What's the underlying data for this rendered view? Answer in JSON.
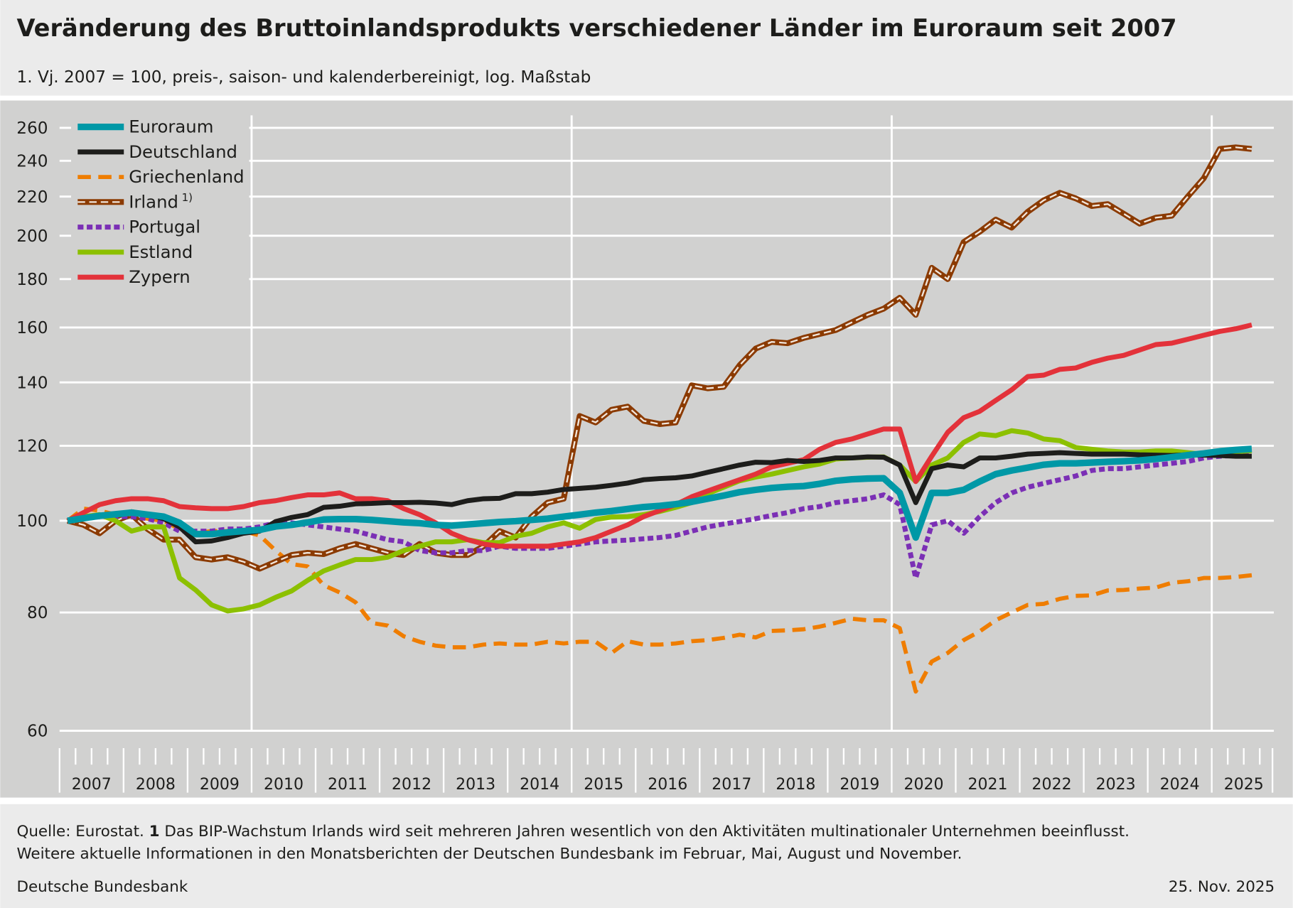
{
  "header": {
    "title": "Veränderung des Bruttoinlandsprodukts verschiedener Länder im Euroraum seit 2007",
    "subtitle": "1. Vj. 2007 = 100, preis-, saison- und kalenderbereinigt, log. Maßstab"
  },
  "footer": {
    "source_prefix": "Quelle: Eurostat.",
    "note_number": "1",
    "note_text": "Das BIP-Wachstum Irlands wird seit mehreren Jahren wesentlich von den Aktivitäten multinationaler Unternehmen beeinflusst.",
    "info": "Weitere aktuelle Informationen in den Monatsberichten der Deutschen Bundesbank im Februar, Mai, August und November.",
    "publisher": "Deutsche Bundesbank",
    "date": "25. Nov. 2025"
  },
  "chart_data": {
    "type": "line",
    "title": "Veränderung des Bruttoinlandsprodukts verschiedener Länder im Euroraum seit 2007",
    "y_scale": "log",
    "ylim": [
      60,
      265
    ],
    "y_ticks": [
      "60",
      "80",
      "100",
      "120",
      "140",
      "160",
      "180",
      "200",
      "220",
      "240",
      "260"
    ],
    "x_start": "2007-Q1",
    "x_frequency": "quarterly",
    "x_tick_labels": [
      "2007",
      "2008",
      "2009",
      "2010",
      "2011",
      "2012",
      "2013",
      "2014",
      "2015",
      "2016",
      "2017",
      "2018",
      "2019",
      "2020",
      "2021",
      "2022",
      "2023",
      "2024",
      "2025"
    ],
    "grid": true,
    "legend_position": "top-left",
    "series": [
      {
        "name": "Euroraum",
        "color": "#0098a6",
        "style": "solid-thick",
        "values": [
          100,
          100.6,
          101.2,
          101.6,
          102,
          101.5,
          101,
          99.5,
          96.8,
          96.8,
          97.2,
          97.5,
          97.8,
          98.6,
          99,
          99.6,
          100.3,
          100.4,
          100.4,
          100.2,
          99.9,
          99.6,
          99.4,
          99,
          98.8,
          99.1,
          99.4,
          99.7,
          99.9,
          100.2,
          100.5,
          101,
          101.5,
          102,
          102.4,
          102.9,
          103.4,
          103.7,
          104.1,
          104.7,
          105.5,
          106.3,
          107.2,
          107.8,
          108.3,
          108.6,
          108.8,
          109.4,
          110.2,
          110.6,
          110.8,
          110.9,
          107,
          96,
          107,
          107,
          107.8,
          110,
          112,
          113,
          113.8,
          114.6,
          115,
          115,
          115.2,
          115.4,
          115.6,
          115.8,
          116.2,
          116.7,
          117.3,
          117.8,
          118.4,
          118.8,
          119.1
        ]
      },
      {
        "name": "Deutschland",
        "color": "#1d1d1b",
        "style": "solid",
        "values": [
          100,
          100.5,
          101.2,
          101.5,
          102.2,
          101.5,
          100.5,
          98.5,
          95,
          95.2,
          96,
          97,
          97.5,
          99.8,
          100.8,
          101.5,
          103.3,
          103.6,
          104.2,
          104.3,
          104.5,
          104.5,
          104.6,
          104.4,
          104,
          105,
          105.5,
          105.6,
          106.8,
          106.8,
          107.2,
          107.9,
          108.2,
          108.5,
          109,
          109.6,
          110.5,
          110.8,
          111,
          111.5,
          112.5,
          113.5,
          114.5,
          115.3,
          115.2,
          115.8,
          115.5,
          115.8,
          116.5,
          116.5,
          116.8,
          116.7,
          114.5,
          104.5,
          113.5,
          114.5,
          114,
          116.5,
          116.5,
          117,
          117.6,
          117.8,
          118,
          117.8,
          117.6,
          117.6,
          117.6,
          117.4,
          117.3,
          117.2,
          117.4,
          117.3,
          117.2,
          117,
          117
        ]
      },
      {
        "name": "Griechenland",
        "color": "#ef7d00",
        "style": "dashed",
        "values": [
          100,
          103,
          102.5,
          101.5,
          101,
          100.5,
          100,
          98,
          97,
          97.5,
          97.5,
          97.5,
          96.5,
          93,
          90,
          89.5,
          85.5,
          84,
          82,
          78,
          77.5,
          75.5,
          74.5,
          73.8,
          73.5,
          73.5,
          74,
          74.2,
          74,
          74,
          74.5,
          74.2,
          74.5,
          74.5,
          72.5,
          74.6,
          74,
          74,
          74.2,
          74.6,
          74.8,
          75.2,
          75.8,
          75.3,
          76.5,
          76.6,
          76.8,
          77.3,
          78,
          78.8,
          78.5,
          78.5,
          77,
          66,
          71,
          72.5,
          74.8,
          76.4,
          78.5,
          80,
          81.5,
          81.7,
          82.7,
          83.3,
          83.4,
          84.4,
          84.5,
          84.8,
          85,
          86,
          86.3,
          87,
          87,
          87.2,
          87.6
        ]
      },
      {
        "name": "Irland",
        "footnote": "1)",
        "color": "#8b3a00",
        "style": "double",
        "values": [
          100,
          99,
          97,
          100,
          101.5,
          98,
          95.5,
          95.5,
          91.5,
          91,
          91.5,
          90.5,
          89,
          90.5,
          92,
          92.5,
          92.2,
          93.5,
          94.5,
          93.5,
          92.5,
          92,
          94.5,
          92.5,
          92,
          92,
          94,
          97.5,
          96,
          101,
          104.5,
          105.5,
          129,
          127,
          131,
          132,
          127.5,
          126.5,
          127,
          139,
          138,
          138.5,
          146,
          152,
          154.5,
          154,
          156,
          157.5,
          159,
          162,
          165,
          167.5,
          172,
          165,
          185,
          180,
          197,
          202,
          208,
          204,
          212,
          218,
          222,
          219,
          215,
          216,
          211,
          206,
          209,
          210,
          220,
          230,
          247,
          248,
          247
        ]
      },
      {
        "name": "Portugal",
        "color": "#7b2fb5",
        "style": "dotted",
        "values": [
          100,
          100.5,
          101,
          101,
          101,
          100.5,
          99.5,
          97.5,
          97.5,
          97.5,
          98,
          98,
          98.5,
          99.5,
          99.5,
          99,
          98.5,
          98,
          97.5,
          96.5,
          95.5,
          95,
          93,
          92.5,
          92.5,
          93,
          93,
          94,
          93.5,
          93.5,
          93.5,
          94,
          94.5,
          95,
          95.2,
          95.4,
          95.7,
          96,
          96.5,
          97.5,
          98.5,
          99.2,
          99.8,
          100.5,
          101.3,
          102,
          103,
          103.5,
          104.5,
          105,
          105.5,
          106.5,
          104,
          87,
          99,
          100,
          97,
          101,
          104.5,
          107,
          108.5,
          109.5,
          110.5,
          111.5,
          113,
          113.5,
          113.5,
          114,
          114.5,
          115,
          115.5,
          116.5,
          117,
          117.2,
          117.5
        ]
      },
      {
        "name": "Estland",
        "color": "#8cc000",
        "style": "solid",
        "values": [
          100,
          101,
          101.5,
          100,
          97.5,
          98.5,
          98.5,
          87,
          84.5,
          81.5,
          80.3,
          80.7,
          81.5,
          83,
          84.3,
          86.5,
          88.5,
          89.8,
          91,
          91,
          91.5,
          93,
          94,
          95,
          95,
          95.5,
          94.8,
          94.8,
          96.3,
          97,
          98.5,
          99.5,
          98.2,
          100.3,
          100.9,
          101,
          101.5,
          102.3,
          103.3,
          104.5,
          106.8,
          108.5,
          110.2,
          111.2,
          112,
          113,
          114,
          114.8,
          116.2,
          116.5,
          116.7,
          116.8,
          114.5,
          110,
          114.5,
          116.5,
          121,
          123.5,
          123,
          124.5,
          123.8,
          122,
          121.5,
          119.5,
          119,
          118.5,
          118.2,
          118.2,
          118.5,
          118.5,
          118,
          117.5,
          118,
          118.3,
          118.6
        ]
      },
      {
        "name": "Zypern",
        "color": "#e3323a",
        "style": "solid",
        "values": [
          100,
          102,
          104,
          105,
          105.5,
          105.5,
          105,
          103.5,
          103.2,
          103,
          103,
          103.5,
          104.5,
          105,
          105.8,
          106.5,
          106.5,
          107,
          105.5,
          105.5,
          105,
          103,
          101.5,
          99.5,
          97,
          95.5,
          94.5,
          94,
          94,
          94,
          94,
          94.5,
          95,
          96,
          97.5,
          99,
          101,
          102.5,
          104,
          106,
          107.5,
          109,
          110.5,
          112,
          114,
          115,
          116,
          119,
          121,
          122,
          123.5,
          125,
          125,
          110,
          117,
          124,
          128.5,
          130.5,
          134,
          137.5,
          142,
          142.5,
          144.5,
          145,
          147,
          148.5,
          149.5,
          151.5,
          153.5,
          154,
          155.5,
          157,
          158.5,
          159.5,
          161
        ]
      }
    ]
  }
}
